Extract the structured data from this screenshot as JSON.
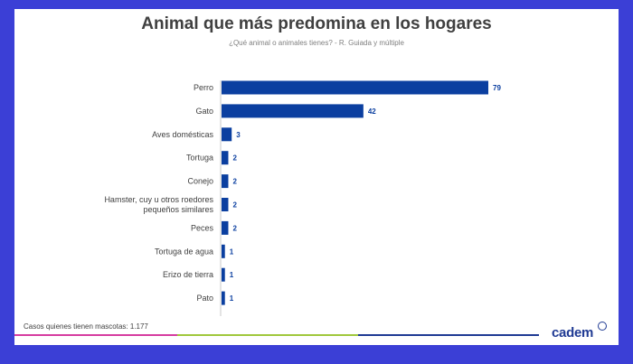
{
  "header": {
    "title": "Animal que más predomina en los hogares",
    "subtitle": "¿Qué animal o animales tienes? - R. Guiada y múltiple"
  },
  "footer": {
    "note": "Casos quienes tienen mascotas: 1.177",
    "logo": "cadem"
  },
  "colors": {
    "background": "#3b3fd6",
    "bar": "#0b3fa0",
    "text": "#404040",
    "line_pink": "#d63ca0",
    "line_green": "#a0c83c",
    "line_blue": "#1f3a93"
  },
  "chart_data": {
    "type": "bar",
    "orientation": "horizontal",
    "title": "Animal que más predomina en los hogares",
    "subtitle": "¿Qué animal o animales tienes? - R. Guiada y múltiple",
    "categories": [
      "Perro",
      "Gato",
      "Aves domésticas",
      "Tortuga",
      "Conejo",
      "Hamster, cuy u otros roedores pequeños similares",
      "Peces",
      "Tortuga de agua",
      "Erizo de tierra",
      "Pato"
    ],
    "values": [
      79,
      42,
      3,
      2,
      2,
      2,
      2,
      1,
      1,
      1
    ],
    "xlim": [
      0,
      79
    ],
    "grid": false,
    "legend": "none"
  }
}
